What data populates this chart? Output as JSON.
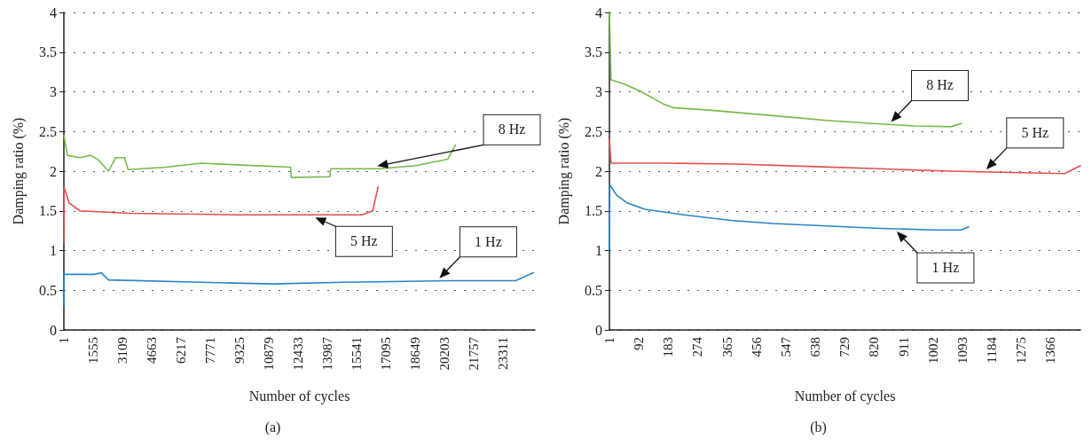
{
  "chart_data": [
    {
      "type": "line",
      "title": "(a)",
      "xlabel": "Number of cycles",
      "ylabel": "Damping ratio (%)",
      "xlim": [
        1,
        25000
      ],
      "xticks": [
        1,
        1555,
        3109,
        4663,
        6217,
        7771,
        9325,
        10879,
        12433,
        13987,
        15541,
        17095,
        18649,
        20203,
        21757,
        23311
      ],
      "ylim": [
        0,
        4
      ],
      "yticks": [
        0,
        0.5,
        1,
        1.5,
        2,
        2.5,
        3,
        3.5,
        4
      ],
      "grid": "y",
      "marker": "none",
      "line_style": "solid",
      "series": [
        {
          "name": "8 Hz",
          "color": "#77b94b",
          "x": [
            1,
            190,
            853,
            1421,
            1800,
            2369,
            2748,
            3222,
            3411,
            5400,
            7296,
            9191,
            12033,
            12071,
            14118,
            14156,
            16771,
            18666,
            20371,
            20788
          ],
          "values": [
            2.45,
            2.2,
            2.17,
            2.2,
            2.15,
            2.0,
            2.17,
            2.17,
            2.02,
            2.05,
            2.1,
            2.08,
            2.05,
            1.92,
            1.93,
            2.03,
            2.03,
            2.07,
            2.15,
            2.33
          ]
        },
        {
          "name": "5 Hz",
          "color": "#e0504f",
          "x": [
            1,
            10,
            284,
            853,
            3506,
            9191,
            15823,
            16392,
            16676
          ],
          "values": [
            1.1,
            1.8,
            1.6,
            1.5,
            1.47,
            1.45,
            1.45,
            1.5,
            1.8
          ]
        },
        {
          "name": "1 Hz",
          "color": "#2a84c6",
          "x": [
            1,
            10,
            1611,
            1990,
            2369,
            7296,
            11086,
            14876,
            20561,
            23972,
            24919
          ],
          "values": [
            0.3,
            0.7,
            0.7,
            0.72,
            0.63,
            0.6,
            0.58,
            0.6,
            0.62,
            0.62,
            0.72
          ]
        }
      ]
    },
    {
      "type": "line",
      "title": "(b)",
      "xlabel": "Number of cycles",
      "ylabel": "Damping ratio (%)",
      "xlim": [
        1,
        1458
      ],
      "xticks": [
        1,
        92,
        183,
        274,
        365,
        456,
        547,
        638,
        729,
        820,
        911,
        1002,
        1093,
        1184,
        1275,
        1366
      ],
      "ylim": [
        0,
        4
      ],
      "yticks": [
        0,
        0.5,
        1,
        1.5,
        2,
        2.5,
        3,
        3.5,
        4
      ],
      "grid": "y",
      "marker": "none",
      "line_style": "solid",
      "series": [
        {
          "name": "8 Hz",
          "color": "#77b94b",
          "x": [
            1,
            6,
            45,
            100,
            166,
            199,
            309,
            419,
            562,
            672,
            815,
            947,
            1057,
            1090
          ],
          "values": [
            4,
            3.15,
            3.1,
            3.0,
            2.85,
            2.8,
            2.77,
            2.73,
            2.68,
            2.64,
            2.6,
            2.57,
            2.56,
            2.6
          ]
        },
        {
          "name": "5 Hz",
          "color": "#e0504f",
          "x": [
            1,
            6,
            177,
            397,
            617,
            837,
            1057,
            1277,
            1409,
            1458
          ],
          "values": [
            2.4,
            2.1,
            2.1,
            2.09,
            2.06,
            2.03,
            2.0,
            1.98,
            1.97,
            2.07
          ]
        },
        {
          "name": "1 Hz",
          "color": "#2a84c6",
          "x": [
            1,
            2,
            23,
            56,
            111,
            232,
            375,
            507,
            672,
            837,
            1002,
            1090,
            1112
          ],
          "values": [
            1.0,
            1.83,
            1.7,
            1.6,
            1.52,
            1.45,
            1.38,
            1.34,
            1.31,
            1.28,
            1.26,
            1.26,
            1.3
          ]
        }
      ]
    }
  ]
}
